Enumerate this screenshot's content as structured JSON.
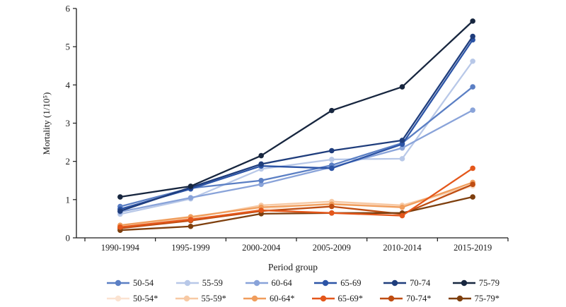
{
  "chart_data": {
    "type": "line",
    "title": "",
    "xlabel": "Period group",
    "ylabel": "Mortality (1/10⁵)",
    "ylim": [
      0,
      6
    ],
    "yticks": [
      0,
      1,
      2,
      3,
      4,
      5,
      6
    ],
    "grid": false,
    "legend_position": "bottom",
    "categories": [
      "1990-1994",
      "1995-1999",
      "2000-2004",
      "2005-2009",
      "2010-2014",
      "2015-2019"
    ],
    "series": [
      {
        "name": "50-54*",
        "color": "#fbe3d1",
        "values": [
          0.3,
          0.45,
          0.75,
          0.9,
          0.82,
          1.35
        ]
      },
      {
        "name": "55-59*",
        "color": "#f7c9a4",
        "values": [
          0.32,
          0.52,
          0.85,
          0.95,
          0.85,
          1.38
        ]
      },
      {
        "name": "60-64*",
        "color": "#f09d5c",
        "values": [
          0.33,
          0.55,
          0.8,
          0.88,
          0.8,
          1.45
        ]
      },
      {
        "name": "70-74*",
        "color": "#bf4d12",
        "values": [
          0.25,
          0.45,
          0.7,
          0.82,
          0.62,
          1.4
        ]
      },
      {
        "name": "75-79*",
        "color": "#7e3f0e",
        "values": [
          0.2,
          0.3,
          0.63,
          0.65,
          0.65,
          1.07
        ]
      },
      {
        "name": "65-69*",
        "color": "#e4571b",
        "values": [
          0.28,
          0.48,
          0.72,
          0.65,
          0.58,
          1.82
        ]
      },
      {
        "name": "55-59",
        "color": "#b8c8e8",
        "values": [
          0.62,
          1.02,
          1.8,
          2.05,
          2.07,
          4.62
        ]
      },
      {
        "name": "60-64",
        "color": "#89a3d9",
        "values": [
          0.68,
          1.05,
          1.4,
          1.85,
          2.35,
          3.34
        ]
      },
      {
        "name": "50-54",
        "color": "#5b7fc4",
        "values": [
          0.82,
          1.3,
          1.5,
          1.9,
          2.48,
          3.95
        ]
      },
      {
        "name": "65-69",
        "color": "#2c54a6",
        "values": [
          0.75,
          1.28,
          1.88,
          1.82,
          2.45,
          5.18
        ]
      },
      {
        "name": "70-74",
        "color": "#1f3d7c",
        "values": [
          0.7,
          1.32,
          1.93,
          2.28,
          2.55,
          5.27
        ]
      },
      {
        "name": "75-79",
        "color": "#17263f",
        "values": [
          1.07,
          1.35,
          2.15,
          3.33,
          3.95,
          5.67
        ]
      }
    ]
  },
  "legend": {
    "rows": [
      [
        "50-54",
        "55-59",
        "60-64",
        "65-69",
        "70-74",
        "75-79"
      ],
      [
        "50-54*",
        "55-59*",
        "60-64*",
        "65-69*",
        "70-74*",
        "75-79*"
      ]
    ]
  }
}
